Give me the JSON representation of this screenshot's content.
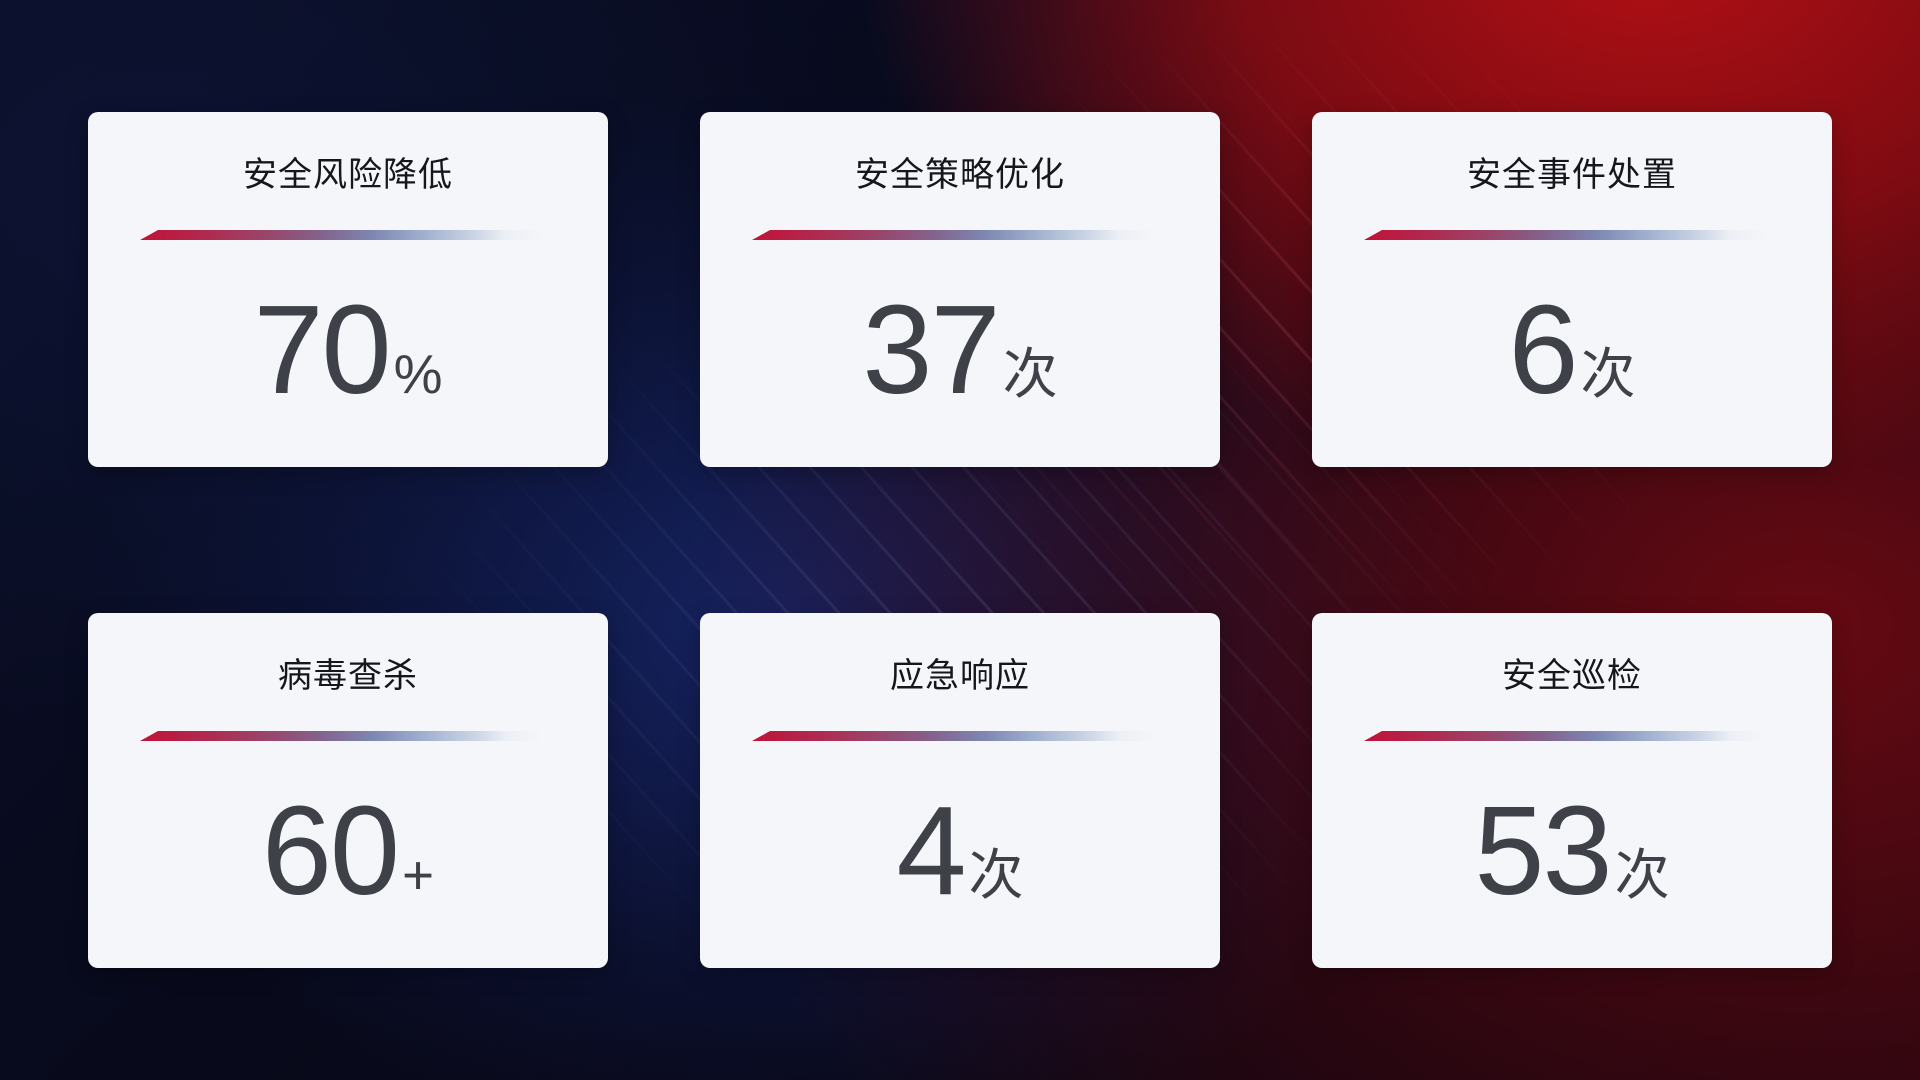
{
  "cards": [
    {
      "title": "安全风险降低",
      "value": "70",
      "unit": "%"
    },
    {
      "title": "安全策略优化",
      "value": "37",
      "unit": "次"
    },
    {
      "title": "安全事件处置",
      "value": "6",
      "unit": "次"
    },
    {
      "title": "病毒查杀",
      "value": "60",
      "unit": "+"
    },
    {
      "title": "应急响应",
      "value": "4",
      "unit": "次"
    },
    {
      "title": "安全巡检",
      "value": "53",
      "unit": "次"
    }
  ],
  "colors": {
    "card_background": "#f5f6fa",
    "title_text": "#15171c",
    "value_text": "#3e4147",
    "divider_red": "#c11238",
    "divider_slate_blue": "#7e87b2",
    "divider_light": "#c9d3e4",
    "background_navy": "#0a0e26",
    "background_blue_glow": "#182870",
    "background_red": "#ba1014",
    "background_maroon": "#4a0810"
  }
}
